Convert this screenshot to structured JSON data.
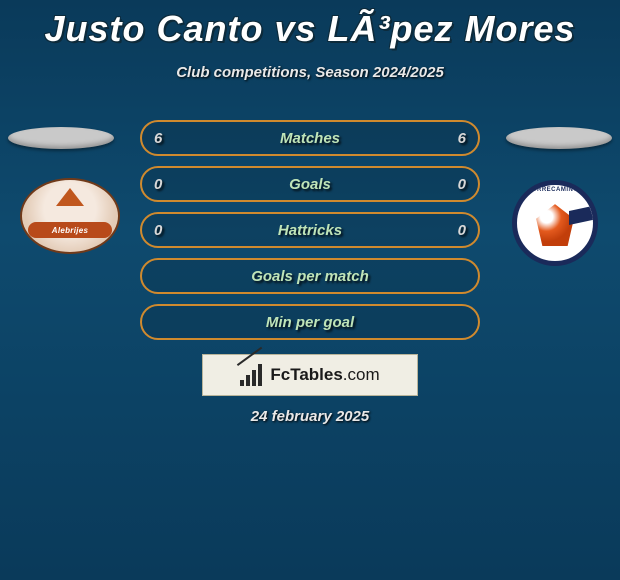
{
  "title": "Justo Canto vs LÃ³pez Mores",
  "subtitle": "Club competitions, Season 2024/2025",
  "date": "24 february 2025",
  "logo_text_main": "FcTables",
  "logo_text_domain": ".com",
  "colors": {
    "bar_border": "#d08a2e",
    "bar_label": "#bfe4b8",
    "bar_value": "#d8d8d8",
    "background_top": "#0a3a5a",
    "logo_bg": "#f0eee4",
    "pill": "#c9c9c9"
  },
  "crest_left": {
    "name": "Alebrijes",
    "banner_color": "#b84a1a"
  },
  "crest_right": {
    "name": "CORRECAMINOS",
    "ring_color": "#1a2a5a"
  },
  "bars": [
    {
      "label": "Matches",
      "left": "6",
      "right": "6"
    },
    {
      "label": "Goals",
      "left": "0",
      "right": "0"
    },
    {
      "label": "Hattricks",
      "left": "0",
      "right": "0"
    },
    {
      "label": "Goals per match",
      "left": "",
      "right": ""
    },
    {
      "label": "Min per goal",
      "left": "",
      "right": ""
    }
  ]
}
